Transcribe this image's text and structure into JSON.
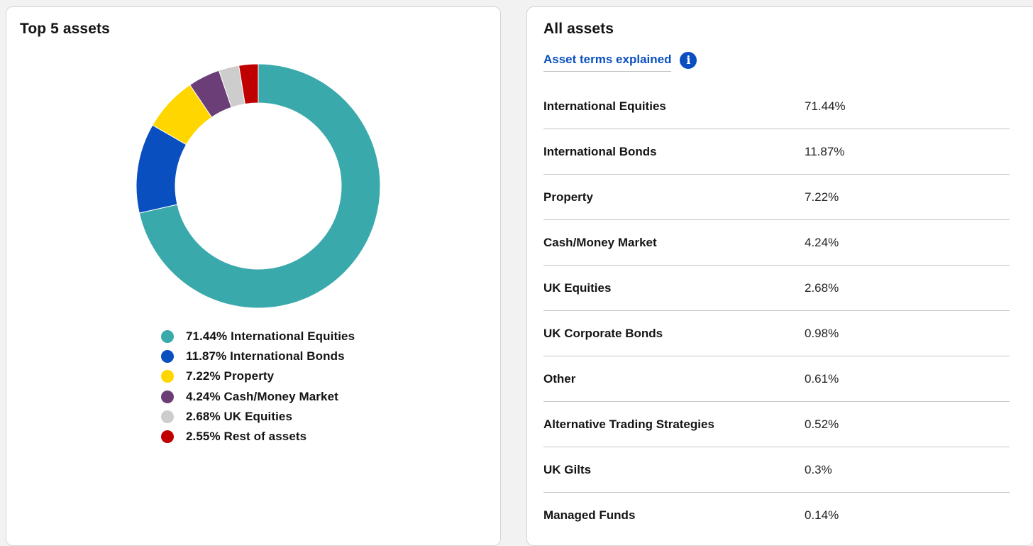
{
  "top5": {
    "title": "Top 5 assets",
    "chart_data": {
      "type": "pie",
      "categories": [
        "International Equities",
        "International Bonds",
        "Property",
        "Cash/Money Market",
        "UK Equities",
        "Rest of assets"
      ],
      "values": [
        71.44,
        11.87,
        7.22,
        4.24,
        2.68,
        2.55
      ],
      "colors": [
        "#3aa9ac",
        "#0a4fbf",
        "#ffd600",
        "#6b3e78",
        "#cdcdcd",
        "#c00000"
      ],
      "legend": [
        "71.44% International Equities",
        "11.87% International Bonds",
        "7.22% Property",
        "4.24% Cash/Money Market",
        "2.68% UK Equities",
        "2.55% Rest of assets"
      ],
      "legend_placement": "bottom"
    }
  },
  "all_assets": {
    "title": "All assets",
    "terms_link": "Asset terms explained",
    "info_icon": "info-icon",
    "rows": [
      {
        "name": "International Equities",
        "pct": "71.44%"
      },
      {
        "name": "International Bonds",
        "pct": "11.87%"
      },
      {
        "name": "Property",
        "pct": "7.22%"
      },
      {
        "name": "Cash/Money Market",
        "pct": "4.24%"
      },
      {
        "name": "UK Equities",
        "pct": "2.68%"
      },
      {
        "name": "UK Corporate Bonds",
        "pct": "0.98%"
      },
      {
        "name": "Other",
        "pct": "0.61%"
      },
      {
        "name": "Alternative Trading Strategies",
        "pct": "0.52%"
      },
      {
        "name": "UK Gilts",
        "pct": "0.3%"
      },
      {
        "name": "Managed Funds",
        "pct": "0.14%"
      }
    ]
  }
}
